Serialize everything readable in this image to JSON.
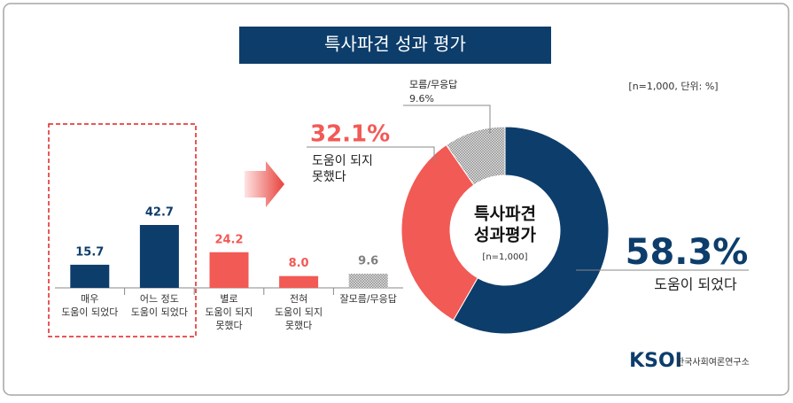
{
  "title": "특사파견 성과 평가",
  "note": "[n=1,000,  단위: %]",
  "logo": {
    "mark": "KSOI",
    "name": "한국사회여론연구소"
  },
  "chart_data": [
    {
      "type": "bar",
      "categories": [
        [
          "매우",
          "도움이 되었다"
        ],
        [
          "어느 정도",
          "도움이 되었다"
        ],
        [
          "별로",
          "도움이 되지",
          "못했다"
        ],
        [
          "전혀",
          "도움이 되지",
          "못했다"
        ],
        [
          "잘모름/무응답"
        ]
      ],
      "values": [
        15.7,
        42.7,
        24.2,
        8.0,
        9.6
      ],
      "value_labels": [
        "15.7",
        "42.7",
        "24.2",
        "8.0",
        "9.6"
      ],
      "colors": [
        "#0d3d6b",
        "#0d3d6b",
        "#f25a55",
        "#f25a55",
        "#8c8c8c"
      ],
      "label_colors": [
        "#0d3d6b",
        "#0d3d6b",
        "#f25a55",
        "#f25a55",
        "#7f7f7f"
      ],
      "pattern_index": 4
    },
    {
      "type": "donut",
      "center_text": [
        "특사파견",
        "성과평가"
      ],
      "center_note": "[n=1,000]",
      "labels": [
        [
          "도움이 되었다"
        ],
        [
          "도움이 되지",
          "못했다"
        ],
        [
          "모름/무응답"
        ]
      ],
      "values": [
        58.3,
        32.1,
        9.6
      ],
      "value_labels": [
        "58.3%",
        "32.1%",
        "9.6%"
      ],
      "colors": [
        "#0d3d6b",
        "#f25a55",
        "#8c8c8c"
      ],
      "pattern_index": 2
    }
  ]
}
